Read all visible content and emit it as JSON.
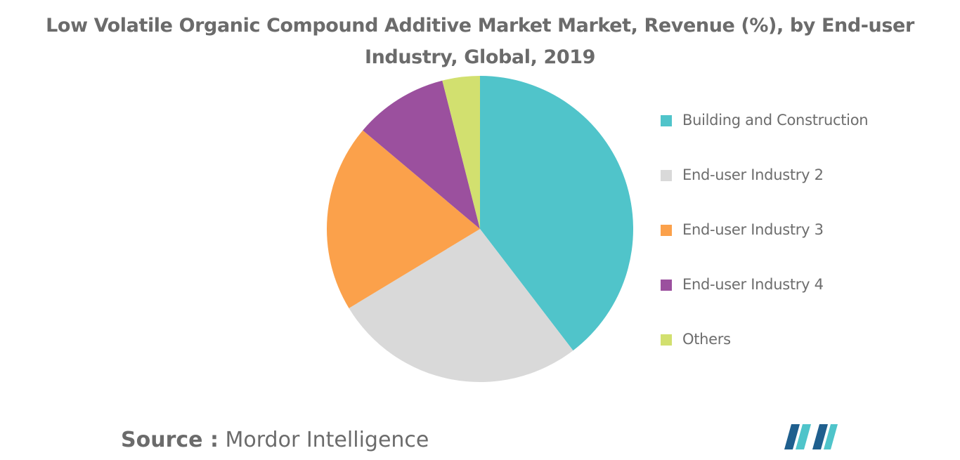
{
  "title": "Low Volatile Organic Compound Additive Market Market, Revenue (%), by End-user Industry, Global, 2019",
  "source": {
    "label": "Source :",
    "value": "Mordor Intelligence"
  },
  "logo": {
    "icon": "mordor-intelligence-logo-icon",
    "colors": [
      "#1f5f8e",
      "#4fc4ca"
    ]
  },
  "chart_data": {
    "type": "pie",
    "start_angle_deg": 0,
    "direction": "clockwise",
    "legend_position": "right",
    "slices": [
      {
        "label": "Building and Construction",
        "value": 40,
        "color": "#50c4ca"
      },
      {
        "label": "End-user Industry 2",
        "value": 27,
        "color": "#d9d9d9"
      },
      {
        "label": "End-user Industry 3",
        "value": 20,
        "color": "#fba14b"
      },
      {
        "label": "End-user Industry 4",
        "value": 10,
        "color": "#9b509e"
      },
      {
        "label": "Others",
        "value": 4,
        "color": "#d2e06f"
      }
    ]
  }
}
